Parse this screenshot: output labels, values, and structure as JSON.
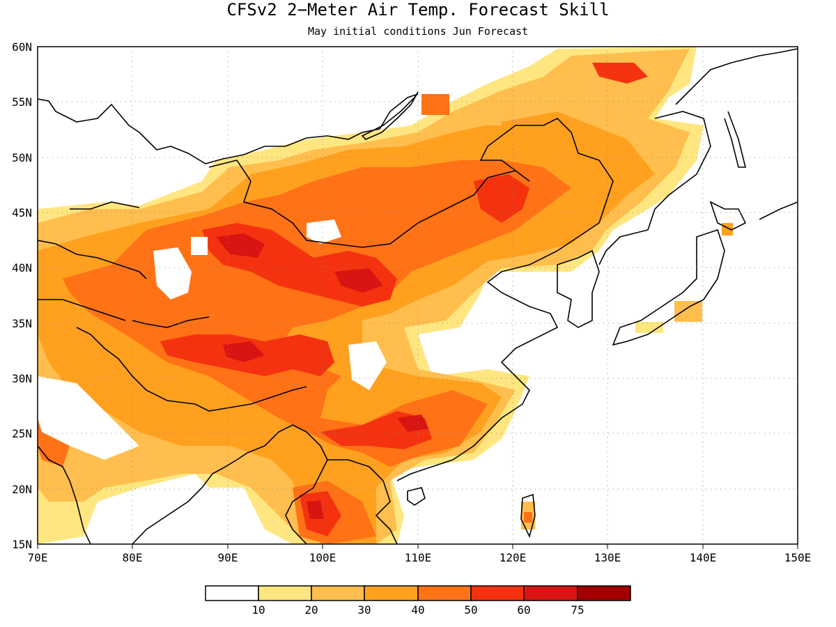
{
  "title": "CFSv2 2−Meter Air Temp. Forecast Skill",
  "subtitle": "May initial conditions  Jun Forecast",
  "map": {
    "lon_range": [
      70,
      150
    ],
    "lat_range": [
      15,
      60
    ],
    "lon_ticks": [
      "70E",
      "80E",
      "90E",
      "100E",
      "110E",
      "120E",
      "130E",
      "140E",
      "150E"
    ],
    "lat_ticks": [
      "15N",
      "20N",
      "25N",
      "30N",
      "35N",
      "40N",
      "45N",
      "50N",
      "55N",
      "60N"
    ],
    "gridlines": "dotted"
  },
  "colorbar": {
    "labels": [
      "10",
      "20",
      "30",
      "40",
      "50",
      "60",
      "75"
    ],
    "colors": [
      "#ffffff",
      "#ffe680",
      "#ffbe4d",
      "#ffa01f",
      "#ff7216",
      "#f5320f",
      "#d81512",
      "#a20000"
    ]
  }
}
